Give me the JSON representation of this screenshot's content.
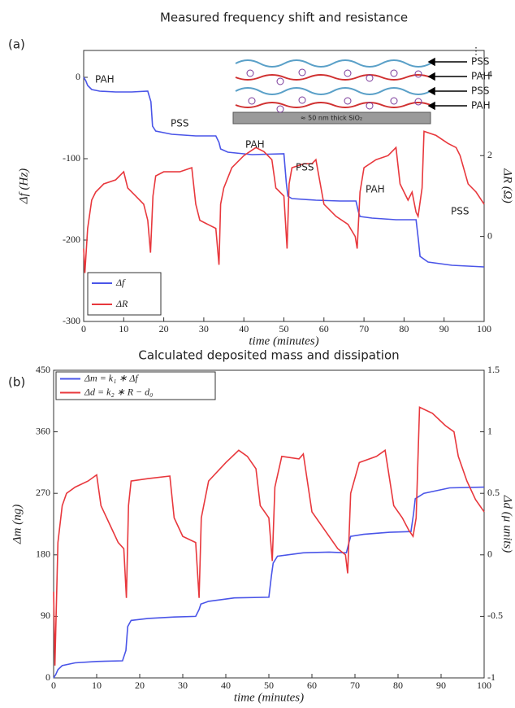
{
  "chart_data": [
    {
      "type": "line",
      "panel_label": "(a)",
      "title": "Measured frequency shift and resistance",
      "xlabel": "time (minutes)",
      "ylabel": "Δf (Hz)",
      "y2label": "ΔR (Ω)",
      "xlim": [
        0,
        100
      ],
      "xticks": [
        0,
        10,
        20,
        30,
        40,
        50,
        60,
        70,
        80,
        90,
        100
      ],
      "ylim": [
        -300,
        33
      ],
      "yticks": [
        -300,
        -200,
        -100,
        0
      ],
      "y2lim": [
        -2.1,
        4.6
      ],
      "y2ticks": [
        0,
        2,
        4
      ],
      "legend": "lower left",
      "series": [
        {
          "name": "Δf",
          "color": "#4a55e8",
          "axis": "y",
          "x": [
            0,
            0.5,
            1,
            2,
            4,
            8,
            12,
            16,
            16.8,
            17.2,
            18,
            22,
            28,
            33,
            33.8,
            34.2,
            36,
            42,
            50,
            50.6,
            51,
            52,
            58,
            64,
            68,
            68.6,
            69,
            72,
            78,
            83,
            83.6,
            84,
            86,
            92,
            100
          ],
          "values": [
            0,
            -4,
            -10,
            -15,
            -17,
            -18,
            -18,
            -17,
            -30,
            -60,
            -66,
            -70,
            -72,
            -72,
            -80,
            -88,
            -92,
            -95,
            -94,
            -130,
            -146,
            -149,
            -151,
            -152,
            -152,
            -165,
            -171,
            -173,
            -175,
            -175,
            -200,
            -220,
            -227,
            -231,
            -233
          ]
        },
        {
          "name": "ΔR",
          "color": "#e8383d",
          "axis": "y2",
          "x": [
            0,
            0.3,
            1,
            2,
            3,
            5,
            8,
            10,
            11,
            13,
            15,
            16,
            16.7,
            17.3,
            18,
            20,
            24,
            27,
            28,
            29,
            31,
            33,
            33.8,
            34.2,
            35,
            37,
            40,
            43,
            45,
            47,
            48,
            50,
            50.8,
            51.3,
            52,
            55,
            57,
            58,
            60,
            63,
            66,
            67.8,
            68.3,
            69,
            70,
            73,
            76,
            78,
            79,
            80,
            81,
            82,
            83,
            83.5,
            84.5,
            85,
            88,
            91,
            93,
            94,
            96,
            98,
            100
          ],
          "values": [
            -0.3,
            -0.9,
            0.2,
            0.9,
            1.1,
            1.3,
            1.4,
            1.6,
            1.2,
            1.0,
            0.8,
            0.4,
            -0.4,
            1.0,
            1.5,
            1.6,
            1.6,
            1.7,
            0.8,
            0.4,
            0.3,
            0.2,
            -0.7,
            0.8,
            1.2,
            1.7,
            2.0,
            2.2,
            2.1,
            1.9,
            1.2,
            1.0,
            -0.3,
            1.3,
            1.7,
            1.8,
            1.8,
            1.9,
            0.8,
            0.5,
            0.3,
            0.0,
            -0.3,
            1.1,
            1.7,
            1.9,
            2.0,
            2.2,
            1.3,
            1.1,
            0.9,
            1.1,
            0.6,
            0.5,
            1.2,
            2.6,
            2.5,
            2.3,
            2.2,
            2.0,
            1.3,
            1.1,
            0.8
          ]
        }
      ],
      "annotations": [
        "PAH",
        "PSS",
        "PAH",
        "PSS",
        "PAH",
        "PSS"
      ],
      "inset": {
        "layers": [
          "⋮",
          "PSS",
          "PAH",
          "PSS",
          "PAH"
        ],
        "substrate": "≈ 50 nm thick SiO₂"
      }
    },
    {
      "type": "line",
      "panel_label": "(b)",
      "title": "Calculated deposited mass and dissipation",
      "xlabel": "time (minutes)",
      "ylabel": "Δm (ng)",
      "y2label": "Δd (μ units)",
      "xlim": [
        0,
        100
      ],
      "xticks": [
        0,
        10,
        20,
        30,
        40,
        50,
        60,
        70,
        80,
        90,
        100
      ],
      "ylim": [
        0,
        450
      ],
      "yticks": [
        0,
        90,
        180,
        270,
        360,
        450
      ],
      "y2lim": [
        -1,
        1.5
      ],
      "y2ticks": [
        -1,
        -0.5,
        0,
        0.5,
        1,
        1.5
      ],
      "legend": "upper left",
      "series": [
        {
          "name": "Δm = k₁ ∗ Δf",
          "color": "#4a55e8",
          "axis": "y",
          "x": [
            0,
            0.5,
            1,
            2,
            5,
            10,
            16,
            16.8,
            17.2,
            18,
            22,
            28,
            33,
            33.8,
            34.2,
            36,
            42,
            50,
            50.6,
            51,
            52,
            58,
            64,
            68,
            68.6,
            69,
            72,
            78,
            83,
            83.6,
            84,
            86,
            92,
            100
          ],
          "values": [
            0,
            5,
            12,
            18,
            22,
            24,
            25,
            40,
            75,
            84,
            87,
            89,
            90,
            100,
            108,
            112,
            117,
            118,
            150,
            168,
            178,
            183,
            184,
            183,
            198,
            207,
            210,
            213,
            214,
            240,
            262,
            270,
            278,
            279
          ]
        },
        {
          "name": "Δd = k₂ ∗ R − d₀",
          "color": "#e8383d",
          "axis": "y2",
          "x": [
            0,
            0.3,
            1,
            2,
            3,
            5,
            8,
            10,
            11,
            13,
            15,
            16.3,
            16.9,
            17.4,
            18,
            22,
            27,
            28,
            30,
            33,
            33.8,
            34.3,
            36,
            40,
            43,
            45,
            47,
            48,
            50,
            50.8,
            51.4,
            53,
            57,
            58,
            60,
            63,
            66,
            67.8,
            68.3,
            69,
            71,
            75,
            77,
            79,
            81,
            82.5,
            83.5,
            84.2,
            85,
            88,
            91,
            93,
            94,
            96,
            98,
            100
          ],
          "values": [
            -0.3,
            -0.9,
            0.1,
            0.4,
            0.5,
            0.55,
            0.6,
            0.65,
            0.4,
            0.25,
            0.1,
            0.05,
            -0.35,
            0.4,
            0.6,
            0.62,
            0.64,
            0.3,
            0.15,
            0.1,
            -0.35,
            0.3,
            0.6,
            0.75,
            0.85,
            0.8,
            0.7,
            0.4,
            0.3,
            -0.05,
            0.55,
            0.8,
            0.78,
            0.82,
            0.35,
            0.2,
            0.05,
            0.0,
            -0.15,
            0.5,
            0.75,
            0.8,
            0.85,
            0.4,
            0.3,
            0.2,
            0.15,
            0.3,
            1.2,
            1.15,
            1.05,
            1.0,
            0.8,
            0.6,
            0.45,
            0.35
          ]
        }
      ]
    }
  ]
}
